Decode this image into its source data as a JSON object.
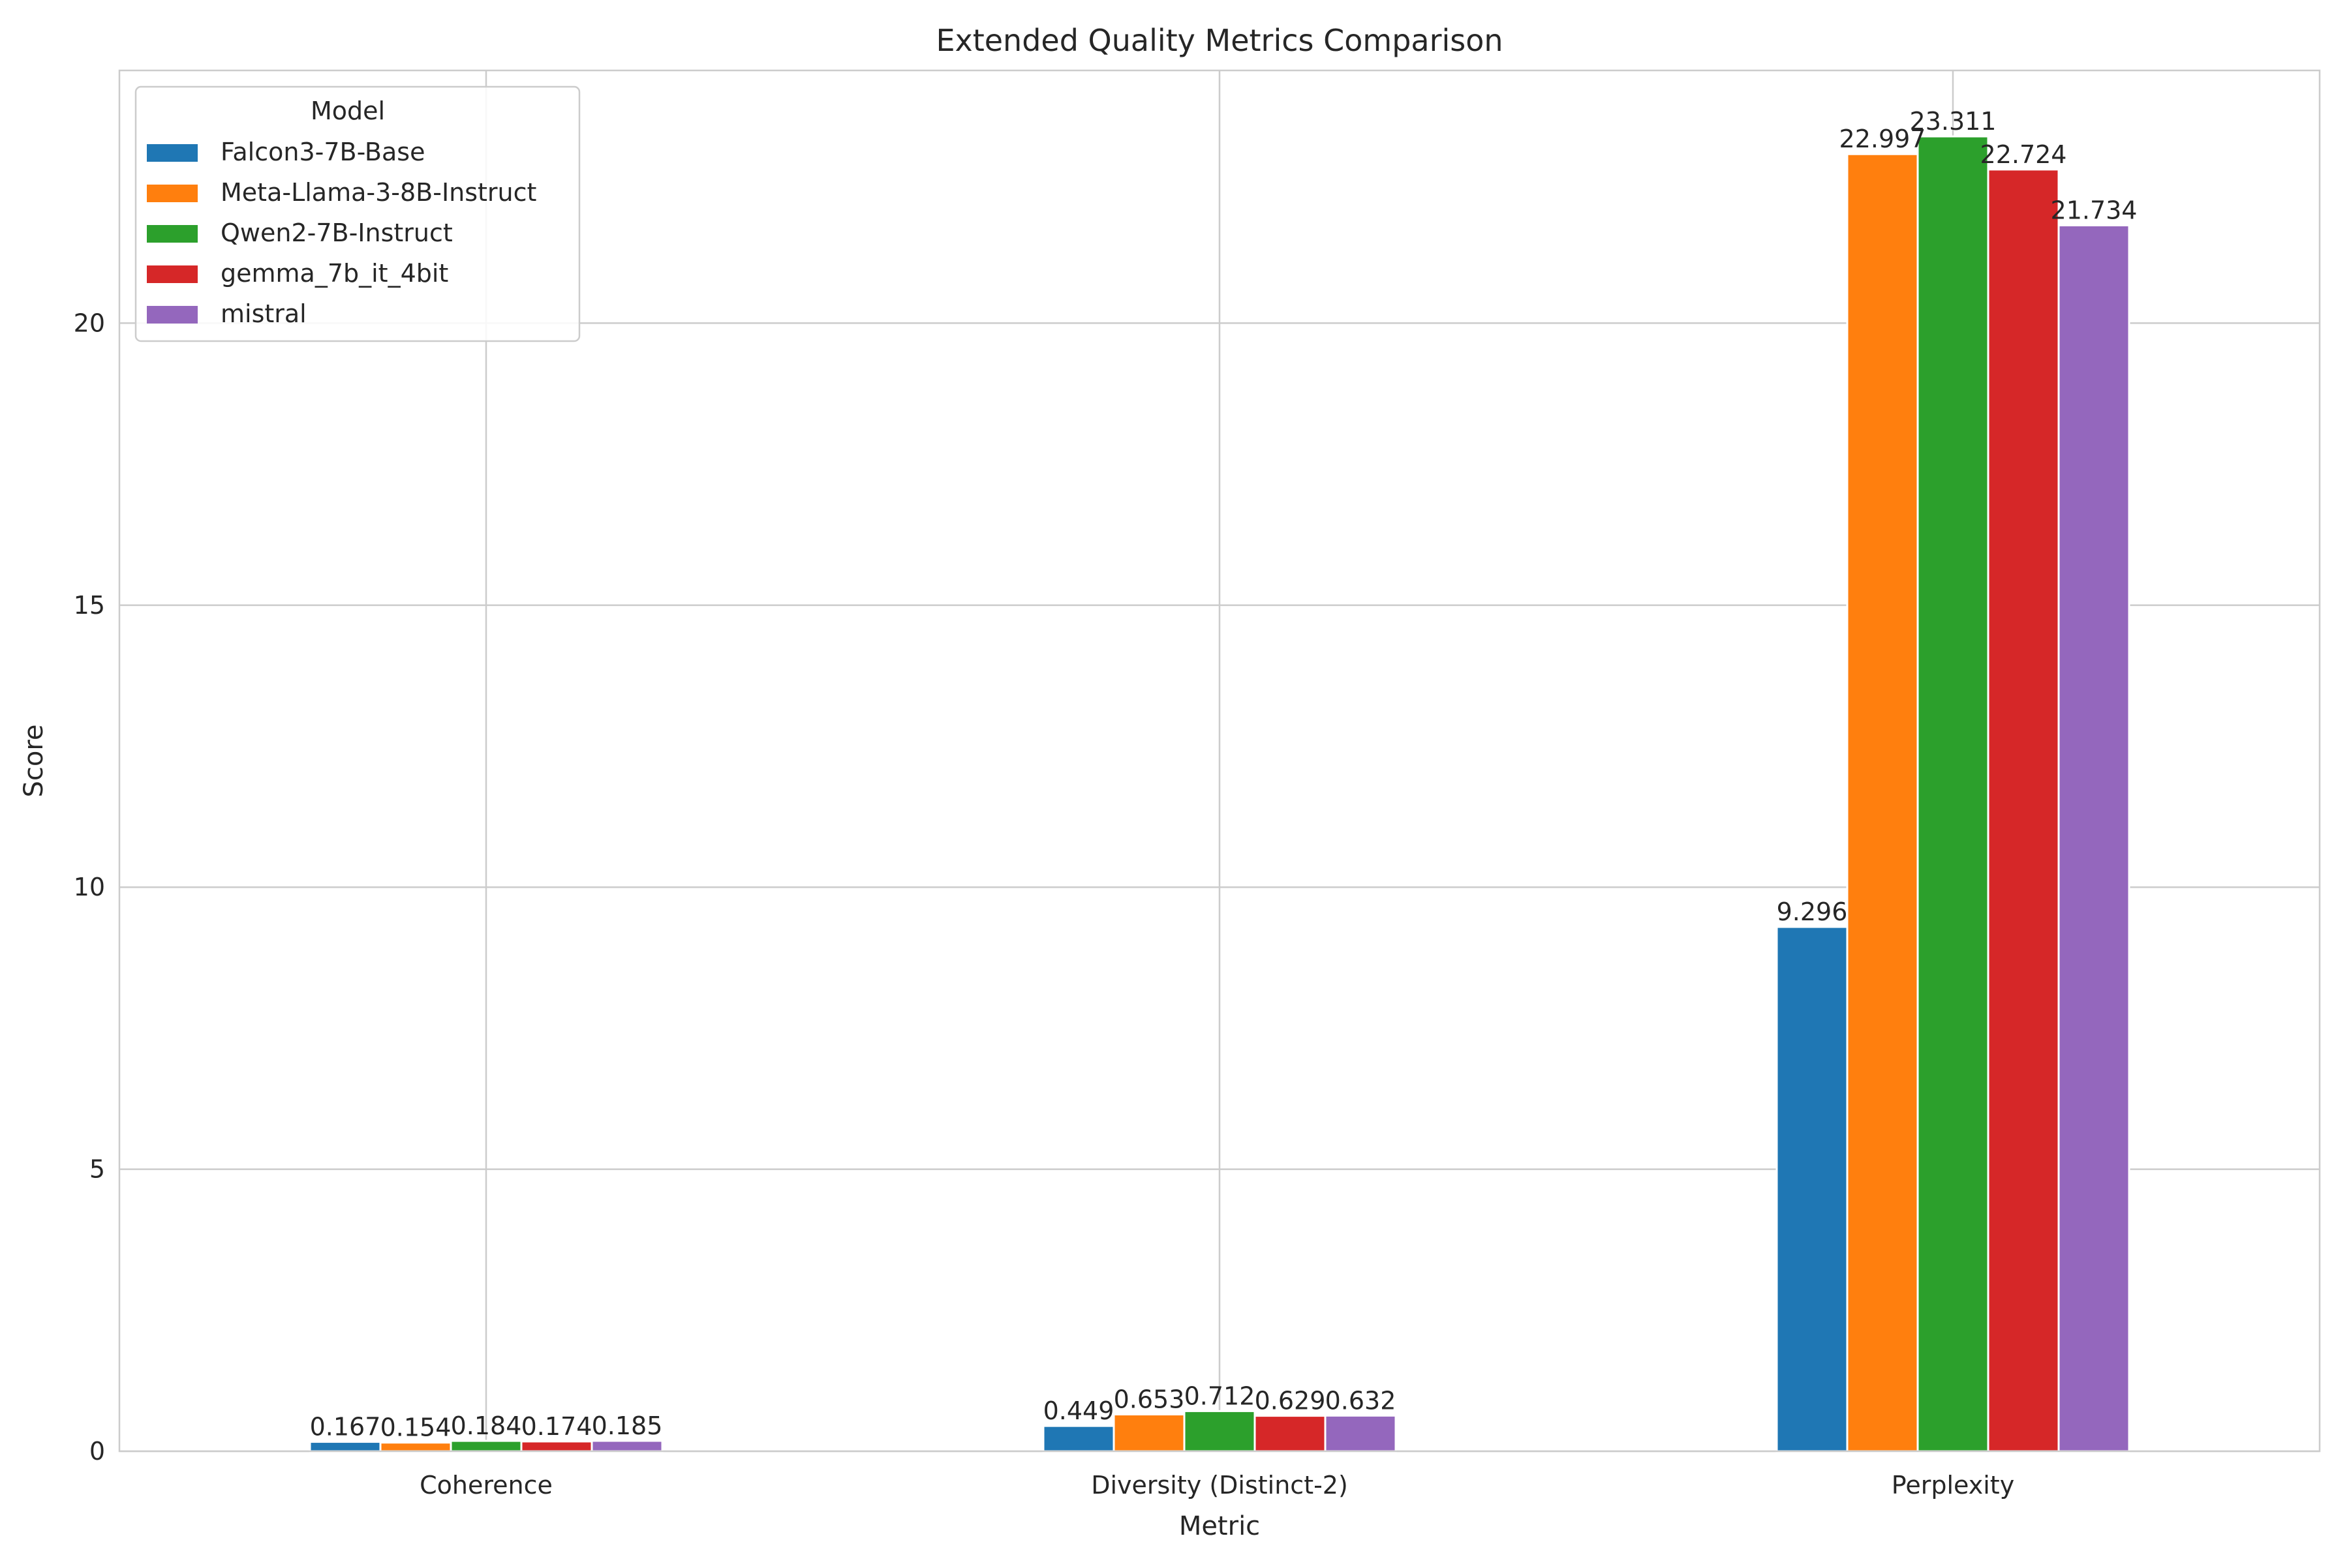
{
  "chart_data": {
    "type": "bar",
    "title": "Extended Quality Metrics Comparison",
    "xlabel": "Metric",
    "ylabel": "Score",
    "categories": [
      "Coherence",
      "Diversity (Distinct-2)",
      "Perplexity"
    ],
    "ylim": [
      0,
      24.48
    ],
    "yticks": [
      0,
      5,
      10,
      15,
      20
    ],
    "grid": true,
    "legend": {
      "title": "Model",
      "placement": "top-left"
    },
    "series": [
      {
        "name": "Falcon3-7B-Base",
        "color": "#1f77b4",
        "values": [
          0.167,
          0.449,
          9.296
        ],
        "labels": [
          "0.167",
          "0.449",
          "9.296"
        ]
      },
      {
        "name": "Meta-Llama-3-8B-Instruct",
        "color": "#ff7f0e",
        "values": [
          0.154,
          0.653,
          22.997
        ],
        "labels": [
          "0.154",
          "0.653",
          "22.997"
        ]
      },
      {
        "name": "Qwen2-7B-Instruct",
        "color": "#2ca02c",
        "values": [
          0.184,
          0.712,
          23.311
        ],
        "labels": [
          "0.184",
          "0.712",
          "23.311"
        ]
      },
      {
        "name": "gemma_7b_it_4bit",
        "color": "#d62728",
        "values": [
          0.174,
          0.629,
          22.724
        ],
        "labels": [
          "0.174",
          "0.629",
          "22.724"
        ]
      },
      {
        "name": "mistral",
        "color": "#9467bd",
        "values": [
          0.185,
          0.632,
          21.734
        ],
        "labels": [
          "0.185",
          "0.632",
          "21.734"
        ]
      }
    ]
  }
}
